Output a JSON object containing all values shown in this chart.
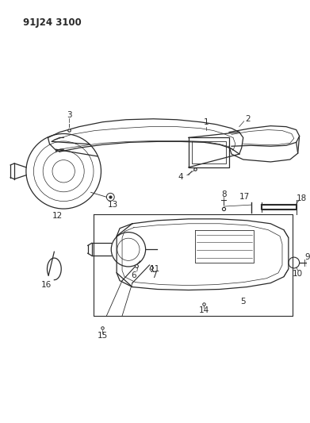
{
  "title": "91J24 3100",
  "bg_color": "#ffffff",
  "line_color": "#2a2a2a",
  "title_fontsize": 8.5,
  "label_fontsize": 7.5
}
